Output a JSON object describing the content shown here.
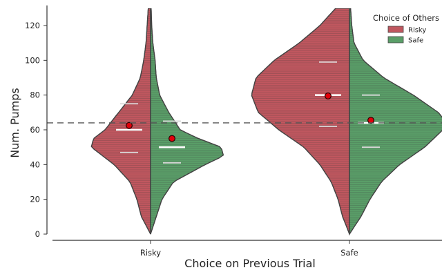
{
  "chart_data": {
    "type": "violin",
    "xlabel": "Choice on Previous Trial",
    "ylabel": "Num. Pumps",
    "categories": [
      "Risky",
      "Safe"
    ],
    "ylim": [
      0,
      130
    ],
    "yticks": [
      0,
      20,
      40,
      60,
      80,
      100,
      120
    ],
    "reference_line": 64,
    "legend": {
      "title": "Choice of Others",
      "placement": "top-right",
      "items": [
        {
          "label": "Risky",
          "color": "#c0575f"
        },
        {
          "label": "Safe",
          "color": "#5a9e68"
        }
      ]
    },
    "series": [
      {
        "name": "Risky",
        "color": "#c0575f",
        "violins": [
          {
            "category": "Risky",
            "mean": 62.5,
            "median": 60,
            "q1": 47,
            "q3": 75,
            "density": [
              [
                0,
                0
              ],
              [
                10,
                0.08
              ],
              [
                20,
                0.12
              ],
              [
                30,
                0.18
              ],
              [
                40,
                0.32
              ],
              [
                45,
                0.42
              ],
              [
                50,
                0.52
              ],
              [
                55,
                0.5
              ],
              [
                60,
                0.4
              ],
              [
                70,
                0.28
              ],
              [
                80,
                0.16
              ],
              [
                90,
                0.09
              ],
              [
                100,
                0.06
              ],
              [
                110,
                0.04
              ],
              [
                120,
                0.03
              ],
              [
                130,
                0.02
              ]
            ]
          },
          {
            "category": "Safe",
            "mean": 79.5,
            "median": 80,
            "q1": 62,
            "q3": 99,
            "density": [
              [
                0,
                0
              ],
              [
                10,
                0.06
              ],
              [
                20,
                0.1
              ],
              [
                30,
                0.16
              ],
              [
                40,
                0.26
              ],
              [
                50,
                0.4
              ],
              [
                60,
                0.62
              ],
              [
                70,
                0.8
              ],
              [
                80,
                0.86
              ],
              [
                90,
                0.82
              ],
              [
                100,
                0.66
              ],
              [
                110,
                0.44
              ],
              [
                120,
                0.26
              ],
              [
                130,
                0.12
              ]
            ]
          }
        ]
      },
      {
        "name": "Safe",
        "color": "#5a9e68",
        "violins": [
          {
            "category": "Risky",
            "mean": 55,
            "median": 50,
            "q1": 41,
            "q3": 65,
            "density": [
              [
                0,
                0
              ],
              [
                10,
                0.05
              ],
              [
                20,
                0.1
              ],
              [
                30,
                0.2
              ],
              [
                40,
                0.48
              ],
              [
                45,
                0.64
              ],
              [
                50,
                0.62
              ],
              [
                55,
                0.42
              ],
              [
                60,
                0.26
              ],
              [
                70,
                0.16
              ],
              [
                80,
                0.08
              ],
              [
                90,
                0.05
              ],
              [
                100,
                0.04
              ],
              [
                110,
                0.02
              ],
              [
                120,
                0.01
              ],
              [
                130,
                0.005
              ]
            ]
          },
          {
            "category": "Safe",
            "mean": 65.5,
            "median": 64,
            "q1": 50,
            "q3": 80,
            "density": [
              [
                0,
                0
              ],
              [
                10,
                0.1
              ],
              [
                20,
                0.18
              ],
              [
                30,
                0.28
              ],
              [
                40,
                0.44
              ],
              [
                50,
                0.66
              ],
              [
                60,
                0.82
              ],
              [
                65,
                0.84
              ],
              [
                70,
                0.78
              ],
              [
                80,
                0.56
              ],
              [
                90,
                0.3
              ],
              [
                100,
                0.12
              ],
              [
                110,
                0.04
              ],
              [
                120,
                0.02
              ],
              [
                130,
                0.01
              ]
            ]
          }
        ]
      }
    ]
  }
}
